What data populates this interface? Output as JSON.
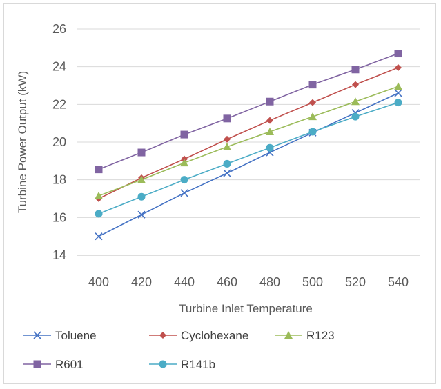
{
  "chart_data": {
    "type": "line",
    "title": "",
    "xlabel": "Turbine Inlet Temperature",
    "ylabel": "Turbine Power Output (kW)",
    "x": [
      400,
      420,
      440,
      460,
      480,
      500,
      520,
      540
    ],
    "ylim": [
      14,
      26
    ],
    "yticks": [
      14,
      16,
      18,
      20,
      22,
      24,
      26
    ],
    "grid": true,
    "legend_position": "bottom",
    "series": [
      {
        "name": "Toluene",
        "color": "#4472c4",
        "marker": "x",
        "values": [
          15.0,
          16.15,
          17.3,
          18.35,
          19.45,
          20.5,
          21.55,
          22.6
        ]
      },
      {
        "name": "Cyclohexane",
        "color": "#c0504d",
        "marker": "diamond",
        "values": [
          17.0,
          18.1,
          19.1,
          20.15,
          21.15,
          22.1,
          23.05,
          23.95
        ]
      },
      {
        "name": "R123",
        "color": "#9bbb59",
        "marker": "triangle",
        "values": [
          17.15,
          18.0,
          18.9,
          19.75,
          20.55,
          21.35,
          22.15,
          22.95
        ]
      },
      {
        "name": "R601",
        "color": "#8064a2",
        "marker": "square",
        "values": [
          18.55,
          19.45,
          20.4,
          21.25,
          22.15,
          23.05,
          23.85,
          24.7
        ]
      },
      {
        "name": "R141b",
        "color": "#4bacc6",
        "marker": "circle",
        "values": [
          16.2,
          17.1,
          18.0,
          18.85,
          19.7,
          20.55,
          21.35,
          22.1
        ]
      }
    ]
  }
}
